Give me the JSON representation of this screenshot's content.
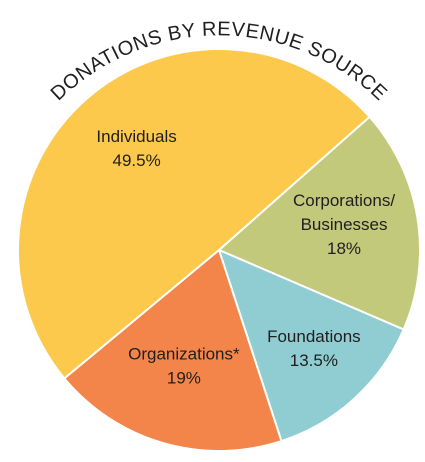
{
  "chart_data": {
    "type": "pie",
    "title": "DONATIONS BY REVENUE SOURCE",
    "categories": [
      "Corporations/ Businesses",
      "Foundations",
      "Organizations*",
      "Individuals"
    ],
    "values": [
      18,
      13.5,
      19,
      49.5
    ],
    "value_labels": [
      "18%",
      "13.5%",
      "19%",
      "49.5%"
    ],
    "colors": [
      "#c2c97a",
      "#8fcdd2",
      "#f3854b",
      "#fcc94c"
    ]
  }
}
